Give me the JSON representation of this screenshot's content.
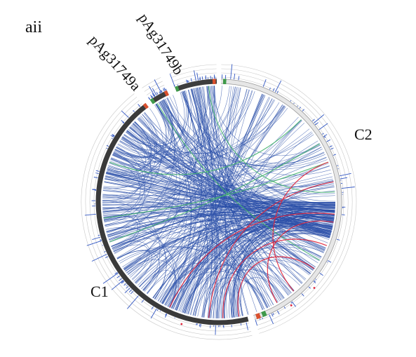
{
  "panel_label": "aii",
  "replicons": [
    {
      "name": "C1",
      "label": "C1",
      "role": "chromosome"
    },
    {
      "name": "C2",
      "label": "C2",
      "role": "chromosome"
    },
    {
      "name": "pAg31749a",
      "label": "pAg31749a",
      "role": "plasmid"
    },
    {
      "name": "pAg31749b",
      "label": "pAg31749b",
      "role": "plasmid"
    }
  ],
  "colors": {
    "background": "#ffffff",
    "c1_ideogram": "#3a3a3a",
    "c2_ideogram": "#e6e6e6",
    "plasmid_ideogram": "#3d3d3d",
    "link_main": "#2a4ea8",
    "link_green": "#45b46e",
    "link_red": "#e0243a",
    "marker_red": "#d9502e",
    "marker_green": "#3f9a4a",
    "histogram": "#3358c4",
    "track_ring": "#c8c8c8"
  }
}
